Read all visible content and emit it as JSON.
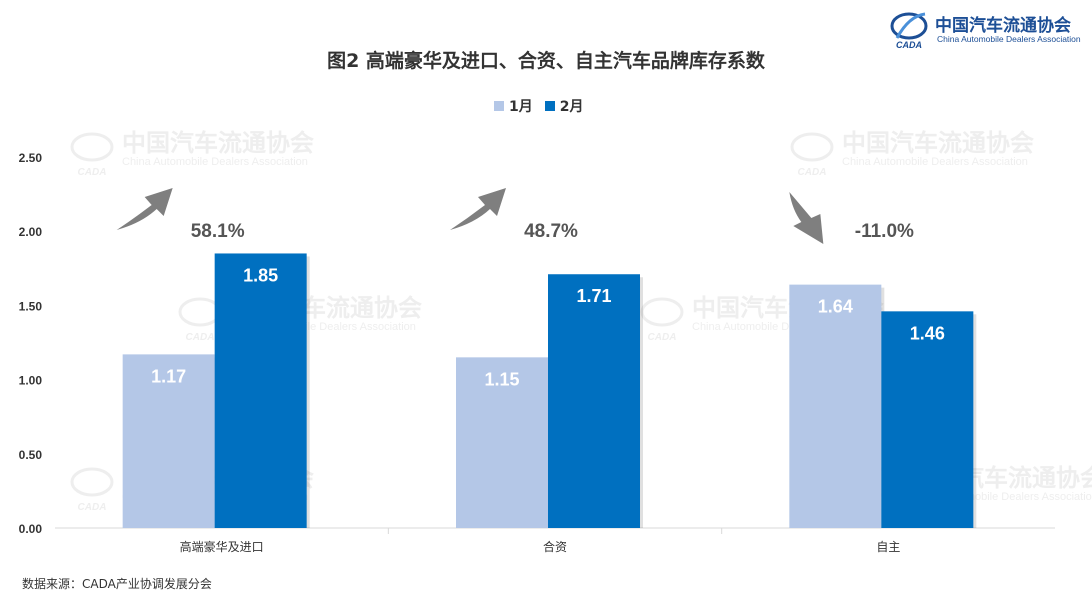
{
  "header": {
    "logo_cn": "中国汽车流通协会",
    "logo_en": "China Automobile Dealers Association",
    "logo_mark": "CADA"
  },
  "watermark": {
    "cn": "中国汽车流通协会",
    "en": "China Automobile Dealers Association",
    "mark": "CADA"
  },
  "source": "数据来源：CADA产业协调发展分会",
  "colors": {
    "jan": "#b4c7e7",
    "feb": "#0070c0",
    "arrow": "#7f7f7f",
    "axis_text": "#333333",
    "grid": "#d9d9d9"
  },
  "chart_data": {
    "type": "bar",
    "title": "图2  高端豪华及进口、合资、自主汽车品牌库存系数",
    "categories": [
      "高端豪华及进口",
      "合资",
      "自主"
    ],
    "series": [
      {
        "name": "1月",
        "values": [
          1.17,
          1.15,
          1.64
        ],
        "labels": [
          "1.17",
          "1.15",
          "1.64"
        ]
      },
      {
        "name": "2月",
        "values": [
          1.85,
          1.71,
          1.46
        ],
        "labels": [
          "1.85",
          "1.71",
          "1.46"
        ]
      }
    ],
    "changes": [
      {
        "label": "58.1%",
        "direction": "up"
      },
      {
        "label": "48.7%",
        "direction": "up"
      },
      {
        "label": "-11.0%",
        "direction": "down"
      }
    ],
    "ylim": [
      0,
      2.5
    ],
    "yticks": [
      "0.00",
      "0.50",
      "1.00",
      "1.50",
      "2.00",
      "2.50"
    ],
    "grid": false,
    "legend_position": "top-center"
  }
}
